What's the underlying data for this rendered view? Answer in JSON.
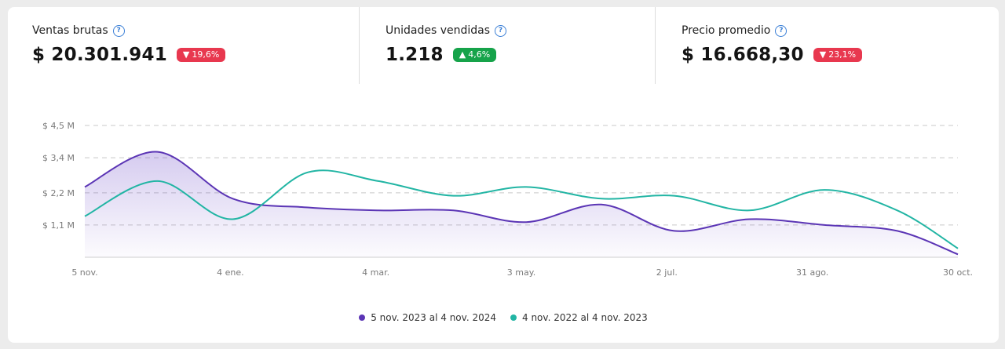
{
  "metrics": [
    {
      "label": "Ventas brutas",
      "value": "$ 20.301.941",
      "change": "19,6%",
      "direction": "down"
    },
    {
      "label": "Unidades vendidas",
      "value": "1.218",
      "change": "4,6%",
      "direction": "up"
    },
    {
      "label": "Precio promedio",
      "value": "$ 16.668,30",
      "change": "23,1%",
      "direction": "down"
    }
  ],
  "icons": {
    "help": "help-circle-icon",
    "down": "triangle-down-icon",
    "up": "triangle-up-icon"
  },
  "colors": {
    "primary": "#5b35b5",
    "secondary": "#22b5a4",
    "negative": "#e8384f",
    "positive": "#16a34a"
  },
  "chart_data": {
    "type": "line",
    "title": "",
    "xlabel": "",
    "ylabel": "",
    "ylim": [
      0,
      4.5
    ],
    "y_ticks": [
      {
        "value": 1.1,
        "label": "$ 1,1 M"
      },
      {
        "value": 2.2,
        "label": "$ 2,2 M"
      },
      {
        "value": 3.4,
        "label": "$ 3,4 M"
      },
      {
        "value": 4.5,
        "label": "$ 4,5 M"
      }
    ],
    "x_ticks": [
      "5 nov.",
      "4 ene.",
      "4 mar.",
      "3 may.",
      "2 jul.",
      "31 ago.",
      "30 oct."
    ],
    "x": [
      "2023-11-05",
      "2023-12-05",
      "2024-01-05",
      "2024-02-05",
      "2024-03-05",
      "2024-04-05",
      "2024-05-05",
      "2024-06-05",
      "2024-07-05",
      "2024-08-05",
      "2024-09-05",
      "2024-10-05",
      "2024-10-30"
    ],
    "series": [
      {
        "name": "5 nov. 2023 al 4 nov. 2024",
        "values": [
          2.4,
          3.6,
          2.0,
          1.7,
          1.6,
          1.6,
          1.2,
          1.8,
          0.9,
          1.3,
          1.1,
          0.9,
          0.1
        ]
      },
      {
        "name": "4 nov. 2022 al 4 nov. 2023",
        "values": [
          1.4,
          2.6,
          1.3,
          2.9,
          2.6,
          2.1,
          2.4,
          2.0,
          2.1,
          1.6,
          2.3,
          1.6,
          0.3
        ]
      }
    ],
    "area_fill_series": 0,
    "grid": true,
    "legend": "bottom-center"
  }
}
